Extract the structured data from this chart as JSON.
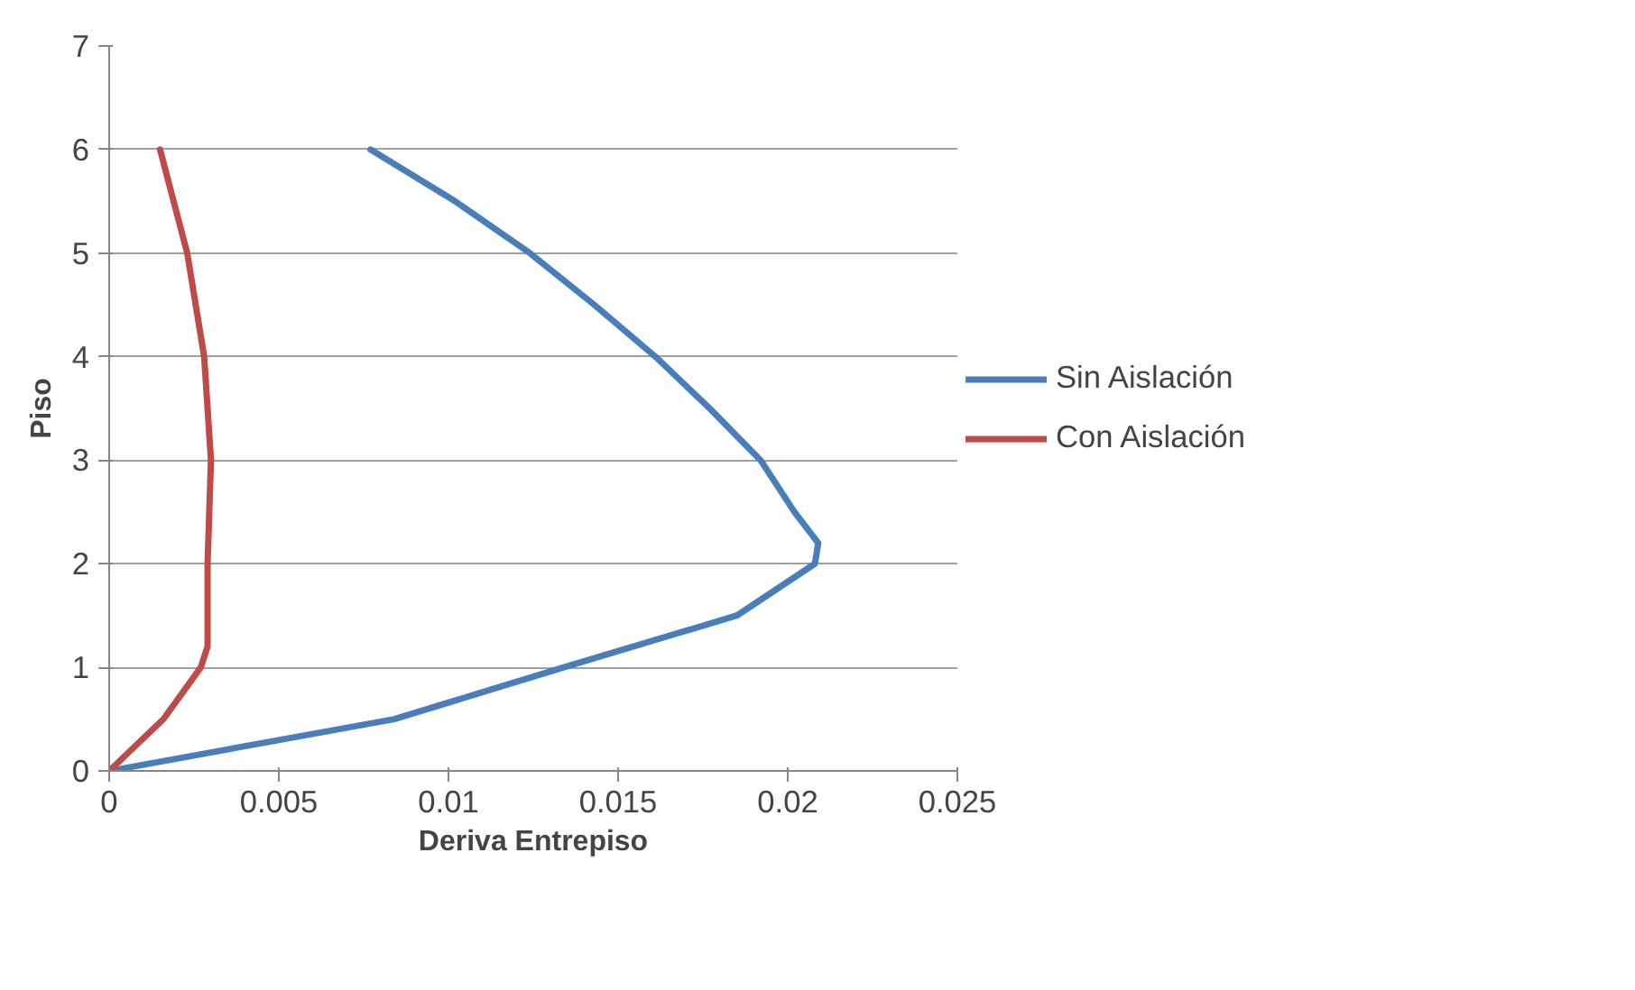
{
  "chart_data": {
    "type": "line",
    "xlabel": "Deriva Entrepiso",
    "ylabel": "Piso",
    "xlim": [
      0,
      0.025
    ],
    "xticks": [
      0,
      0.005,
      0.01,
      0.015,
      0.02,
      0.025
    ],
    "ylim": [
      0,
      7
    ],
    "yticks": [
      0,
      1,
      2,
      3,
      4,
      5,
      6,
      7
    ],
    "grid": "y",
    "legend": "right",
    "line_style": "solid",
    "series": [
      {
        "name": "Sin Aislación",
        "color": "#4a7ebb",
        "x": [
          0,
          0.0084,
          0.0134,
          0.0185,
          0.0208,
          0.0209,
          0.0202,
          0.0192,
          0.0177,
          0.0161,
          0.0143,
          0.0124,
          0.0102,
          0.0077
        ],
        "values": [
          0,
          0.5,
          1,
          1.5,
          2,
          2.2,
          2.5,
          3,
          3.5,
          4,
          4.5,
          5,
          5.5,
          6
        ]
      },
      {
        "name": "Con Aislación",
        "color": "#be4b48",
        "x": [
          0,
          0.0016,
          0.0027,
          0.0029,
          0.0029,
          0.003,
          0.0028,
          0.0023,
          0.0015
        ],
        "values": [
          0,
          0.5,
          1,
          1.2,
          2,
          3,
          4,
          5,
          6
        ]
      }
    ]
  }
}
